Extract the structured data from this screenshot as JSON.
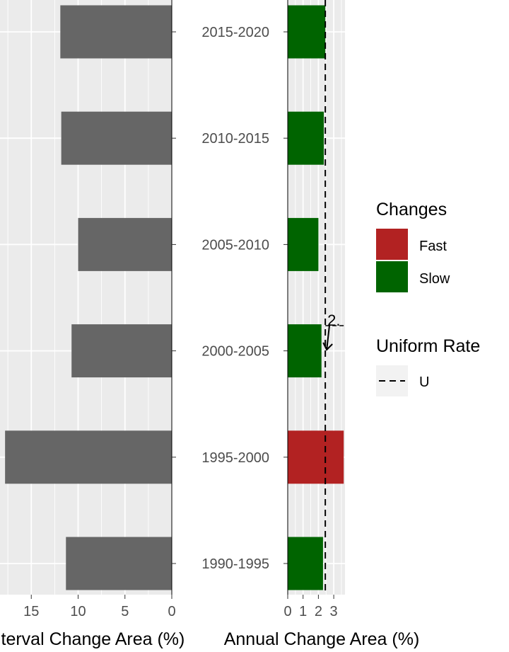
{
  "chart_data": [
    {
      "type": "bar",
      "orientation": "horizontal",
      "categories": [
        "1990-1995",
        "1995-2000",
        "2000-2005",
        "2005-2010",
        "2010-2015",
        "2015-2020"
      ],
      "values": [
        11.3,
        17.8,
        10.7,
        10.0,
        11.8,
        11.9
      ],
      "xlabel": "Interval Change Area (%)",
      "x_ticks": [
        "15",
        "10",
        "5",
        "0"
      ],
      "x_reversed": true,
      "xlim": [
        0,
        18
      ],
      "bar_color": "#666666",
      "grid": true
    },
    {
      "type": "bar",
      "orientation": "horizontal",
      "categories": [
        "1990-1995",
        "1995-2000",
        "2000-2005",
        "2005-2010",
        "2010-2015",
        "2015-2020"
      ],
      "values": [
        2.3,
        3.65,
        2.2,
        2.0,
        2.35,
        2.45
      ],
      "change_class": [
        "Slow",
        "Fast",
        "Slow",
        "Slow",
        "Slow",
        "Slow"
      ],
      "xlabel": "Annual Change Area (%)",
      "x_ticks": [
        "0",
        "1",
        "2",
        "3"
      ],
      "xlim": [
        0,
        3.6
      ],
      "uniform_rate": 2.45,
      "annotation": "2.",
      "grid": true
    }
  ],
  "legend": {
    "changes_title": "Changes",
    "items": [
      {
        "label": "Fast",
        "color": "#b22222"
      },
      {
        "label": "Slow",
        "color": "#006400"
      }
    ],
    "uniform_title": "Uniform Rate",
    "uniform_label": "U"
  },
  "colors": {
    "panel_bg": "#ebebeb",
    "grid": "#ffffff",
    "gray_bar": "#666666",
    "fast": "#b22222",
    "slow": "#006400"
  }
}
